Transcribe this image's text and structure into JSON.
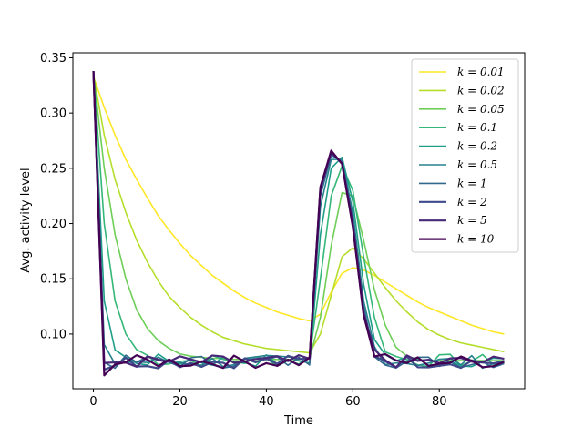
{
  "chart_data": {
    "type": "line",
    "title": "",
    "xlabel": "Time",
    "ylabel": "Avg. activity level",
    "xlim": [
      -4.75,
      99.75
    ],
    "ylim": [
      0.0505,
      0.3545
    ],
    "xticks": [
      0,
      20,
      40,
      60,
      80
    ],
    "yticks": [
      0.1,
      0.15,
      0.2,
      0.25,
      0.3,
      0.35
    ],
    "ytick_labels": [
      "0.10",
      "0.15",
      "0.20",
      "0.25",
      "0.30",
      "0.35"
    ],
    "legend_position": "top-right",
    "x": [
      0,
      2.5,
      5,
      7.5,
      10,
      12.5,
      15,
      17.5,
      20,
      22.5,
      25,
      27.5,
      30,
      32.5,
      35,
      37.5,
      40,
      42.5,
      45,
      47.5,
      50,
      52.5,
      55,
      57.5,
      60,
      62.5,
      65,
      67.5,
      70,
      72.5,
      75,
      77.5,
      80,
      82.5,
      85,
      87.5,
      90,
      92.5,
      95
    ],
    "series": [
      {
        "name": "k = 0.01",
        "color": "#fde725",
        "values": [
          0.333,
          0.305,
          0.28,
          0.258,
          0.24,
          0.223,
          0.207,
          0.194,
          0.182,
          0.171,
          0.162,
          0.153,
          0.146,
          0.139,
          0.133,
          0.128,
          0.124,
          0.12,
          0.117,
          0.114,
          0.112,
          0.118,
          0.138,
          0.155,
          0.16,
          0.158,
          0.153,
          0.147,
          0.141,
          0.135,
          0.129,
          0.124,
          0.12,
          0.116,
          0.112,
          0.108,
          0.105,
          0.102,
          0.1
        ]
      },
      {
        "name": "k = 0.02",
        "color": "#b5de2b",
        "values": [
          0.335,
          0.28,
          0.24,
          0.21,
          0.185,
          0.165,
          0.148,
          0.134,
          0.124,
          0.115,
          0.108,
          0.102,
          0.097,
          0.094,
          0.091,
          0.089,
          0.087,
          0.086,
          0.085,
          0.084,
          0.083,
          0.1,
          0.135,
          0.17,
          0.178,
          0.168,
          0.155,
          0.142,
          0.13,
          0.12,
          0.111,
          0.104,
          0.099,
          0.095,
          0.092,
          0.09,
          0.088,
          0.086,
          0.084
        ]
      },
      {
        "name": "k = 0.05",
        "color": "#6ece58",
        "values": [
          0.336,
          0.25,
          0.19,
          0.15,
          0.122,
          0.105,
          0.094,
          0.087,
          0.082,
          0.08,
          0.079,
          0.078,
          0.078,
          0.077,
          0.077,
          0.077,
          0.077,
          0.077,
          0.077,
          0.077,
          0.078,
          0.115,
          0.18,
          0.228,
          0.225,
          0.185,
          0.14,
          0.108,
          0.088,
          0.08,
          0.077,
          0.076,
          0.076,
          0.076,
          0.076,
          0.076,
          0.076,
          0.076,
          0.076
        ]
      },
      {
        "name": "k = 0.1",
        "color": "#35b779",
        "values": [
          0.337,
          0.2,
          0.13,
          0.1,
          0.086,
          0.08,
          0.077,
          0.076,
          0.076,
          0.076,
          0.076,
          0.076,
          0.076,
          0.076,
          0.076,
          0.076,
          0.076,
          0.076,
          0.076,
          0.076,
          0.077,
          0.15,
          0.225,
          0.252,
          0.23,
          0.17,
          0.115,
          0.088,
          0.079,
          0.077,
          0.076,
          0.076,
          0.076,
          0.076,
          0.076,
          0.076,
          0.076,
          0.076,
          0.076
        ]
      },
      {
        "name": "k = 0.2",
        "color": "#1f9e89",
        "values": [
          0.337,
          0.13,
          0.085,
          0.077,
          0.076,
          0.076,
          0.076,
          0.076,
          0.076,
          0.076,
          0.076,
          0.076,
          0.076,
          0.076,
          0.076,
          0.076,
          0.076,
          0.076,
          0.076,
          0.076,
          0.077,
          0.19,
          0.25,
          0.26,
          0.22,
          0.145,
          0.095,
          0.08,
          0.077,
          0.076,
          0.076,
          0.076,
          0.076,
          0.076,
          0.076,
          0.076,
          0.076,
          0.076,
          0.076
        ]
      },
      {
        "name": "k = 0.5",
        "color": "#26828e",
        "values": [
          0.338,
          0.085,
          0.075,
          0.075,
          0.075,
          0.075,
          0.075,
          0.075,
          0.075,
          0.075,
          0.075,
          0.075,
          0.075,
          0.075,
          0.075,
          0.075,
          0.075,
          0.075,
          0.075,
          0.075,
          0.076,
          0.215,
          0.258,
          0.258,
          0.21,
          0.13,
          0.088,
          0.078,
          0.076,
          0.075,
          0.075,
          0.075,
          0.075,
          0.075,
          0.075,
          0.075,
          0.075,
          0.075,
          0.075
        ]
      },
      {
        "name": "k = 1",
        "color": "#31688e",
        "values": [
          0.338,
          0.075,
          0.074,
          0.075,
          0.075,
          0.075,
          0.075,
          0.075,
          0.075,
          0.075,
          0.075,
          0.075,
          0.075,
          0.075,
          0.075,
          0.075,
          0.075,
          0.075,
          0.075,
          0.075,
          0.076,
          0.225,
          0.262,
          0.256,
          0.205,
          0.125,
          0.085,
          0.077,
          0.075,
          0.075,
          0.075,
          0.075,
          0.075,
          0.075,
          0.075,
          0.075,
          0.075,
          0.075,
          0.075
        ]
      },
      {
        "name": "k = 2",
        "color": "#3e4a89",
        "values": [
          0.338,
          0.071,
          0.074,
          0.075,
          0.075,
          0.075,
          0.075,
          0.075,
          0.075,
          0.075,
          0.075,
          0.075,
          0.075,
          0.075,
          0.075,
          0.075,
          0.075,
          0.075,
          0.075,
          0.075,
          0.076,
          0.23,
          0.264,
          0.255,
          0.2,
          0.12,
          0.083,
          0.077,
          0.075,
          0.075,
          0.075,
          0.075,
          0.075,
          0.075,
          0.075,
          0.075,
          0.075,
          0.075,
          0.075
        ]
      },
      {
        "name": "k = 5",
        "color": "#482878",
        "values": [
          0.338,
          0.069,
          0.074,
          0.075,
          0.075,
          0.075,
          0.075,
          0.075,
          0.075,
          0.075,
          0.075,
          0.075,
          0.075,
          0.075,
          0.075,
          0.075,
          0.075,
          0.075,
          0.075,
          0.075,
          0.076,
          0.232,
          0.265,
          0.254,
          0.198,
          0.118,
          0.082,
          0.077,
          0.075,
          0.075,
          0.075,
          0.075,
          0.075,
          0.075,
          0.075,
          0.075,
          0.075,
          0.075,
          0.075
        ]
      },
      {
        "name": "k = 10",
        "color": "#440154",
        "values": [
          0.338,
          0.068,
          0.074,
          0.075,
          0.075,
          0.075,
          0.075,
          0.075,
          0.075,
          0.075,
          0.075,
          0.075,
          0.075,
          0.075,
          0.075,
          0.075,
          0.075,
          0.075,
          0.075,
          0.075,
          0.076,
          0.233,
          0.266,
          0.254,
          0.197,
          0.117,
          0.082,
          0.077,
          0.075,
          0.075,
          0.075,
          0.075,
          0.075,
          0.075,
          0.075,
          0.075,
          0.075,
          0.075,
          0.075
        ]
      }
    ]
  }
}
